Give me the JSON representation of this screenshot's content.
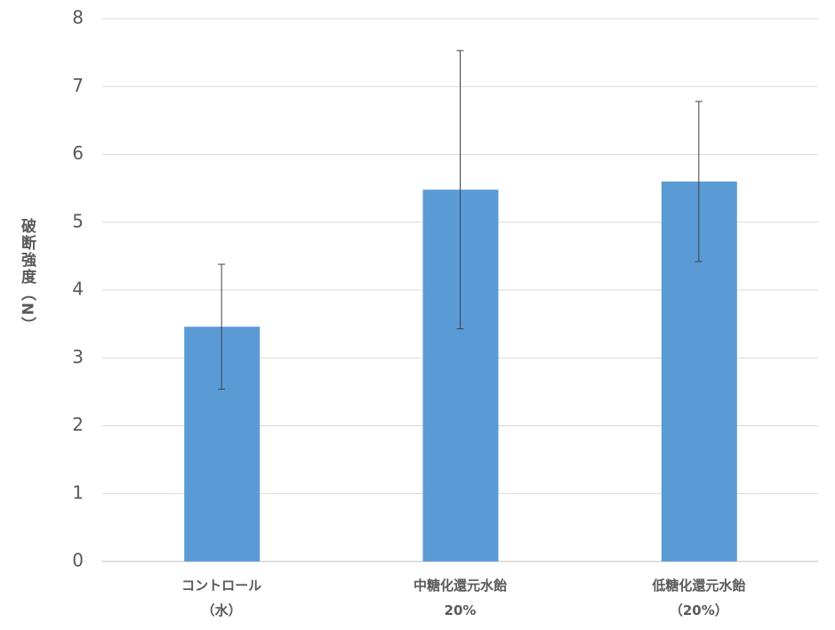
{
  "chart_data": {
    "type": "bar",
    "y_label": "破断強度（N）",
    "categories": [
      "コントロール\n（水）",
      "中糖化還元水飴\n20%",
      "低糖化還元水飴\n（20%）"
    ],
    "values": [
      3.46,
      5.48,
      5.6
    ],
    "errors": [
      0.92,
      2.05,
      1.18
    ],
    "color": "#5b9bd5",
    "ylim": [
      0,
      8
    ],
    "yticks": [
      0,
      1,
      2,
      3,
      4,
      5,
      6,
      7,
      8
    ],
    "grid": true
  }
}
